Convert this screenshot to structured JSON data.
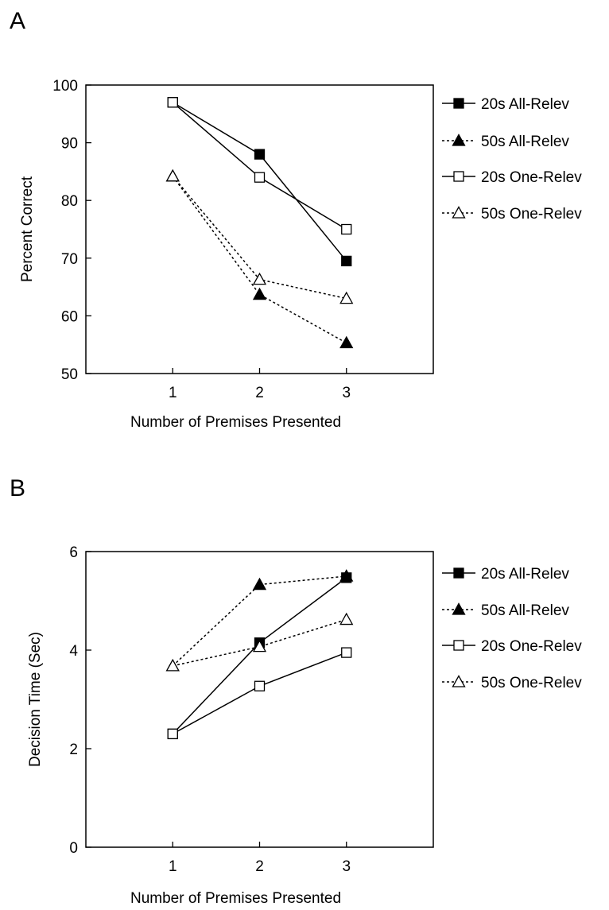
{
  "figure": {
    "panel_a_letter": "A",
    "panel_b_letter": "B"
  },
  "chart_data": [
    {
      "panel": "A",
      "type": "line",
      "title": "",
      "xlabel": "Number of Premises Presented",
      "ylabel": "Percent Correct",
      "x": [
        1,
        2,
        3
      ],
      "xlim": [
        0,
        4
      ],
      "xticks": [
        "1",
        "2",
        "3"
      ],
      "ylim": [
        50,
        100
      ],
      "yticks": [
        "50",
        "60",
        "70",
        "80",
        "90",
        "100"
      ],
      "grid": false,
      "legend_position": "right",
      "series": [
        {
          "name": "20s All-Relev",
          "values": [
            97,
            88,
            69.5
          ],
          "marker": "filled-square",
          "line": "solid"
        },
        {
          "name": "50s All-Relev",
          "values": [
            84.2,
            63.7,
            55.3
          ],
          "marker": "filled-triangle",
          "line": "dotted"
        },
        {
          "name": "20s One-Relev",
          "values": [
            97,
            84,
            75
          ],
          "marker": "open-square",
          "line": "solid"
        },
        {
          "name": "50s One-Relev",
          "values": [
            84.2,
            66.3,
            63
          ],
          "marker": "open-triangle",
          "line": "dotted"
        }
      ]
    },
    {
      "panel": "B",
      "type": "line",
      "title": "",
      "xlabel": "Number of Premises Presented",
      "ylabel": "Decision Time (Sec)",
      "x": [
        1,
        2,
        3
      ],
      "xlim": [
        0,
        4
      ],
      "xticks": [
        "1",
        "2",
        "3"
      ],
      "ylim": [
        0,
        6
      ],
      "yticks": [
        "0",
        "2",
        "4",
        "6"
      ],
      "grid": false,
      "legend_position": "right",
      "series": [
        {
          "name": "20s All-Relev",
          "values": [
            2.3,
            4.15,
            5.47
          ],
          "marker": "filled-square",
          "line": "solid"
        },
        {
          "name": "50s All-Relev",
          "values": [
            3.68,
            5.33,
            5.5
          ],
          "marker": "filled-triangle",
          "line": "dotted"
        },
        {
          "name": "20s One-Relev",
          "values": [
            2.3,
            3.27,
            3.95
          ],
          "marker": "open-square",
          "line": "solid"
        },
        {
          "name": "50s One-Relev",
          "values": [
            3.68,
            4.07,
            4.62
          ],
          "marker": "open-triangle",
          "line": "dotted"
        }
      ]
    }
  ]
}
